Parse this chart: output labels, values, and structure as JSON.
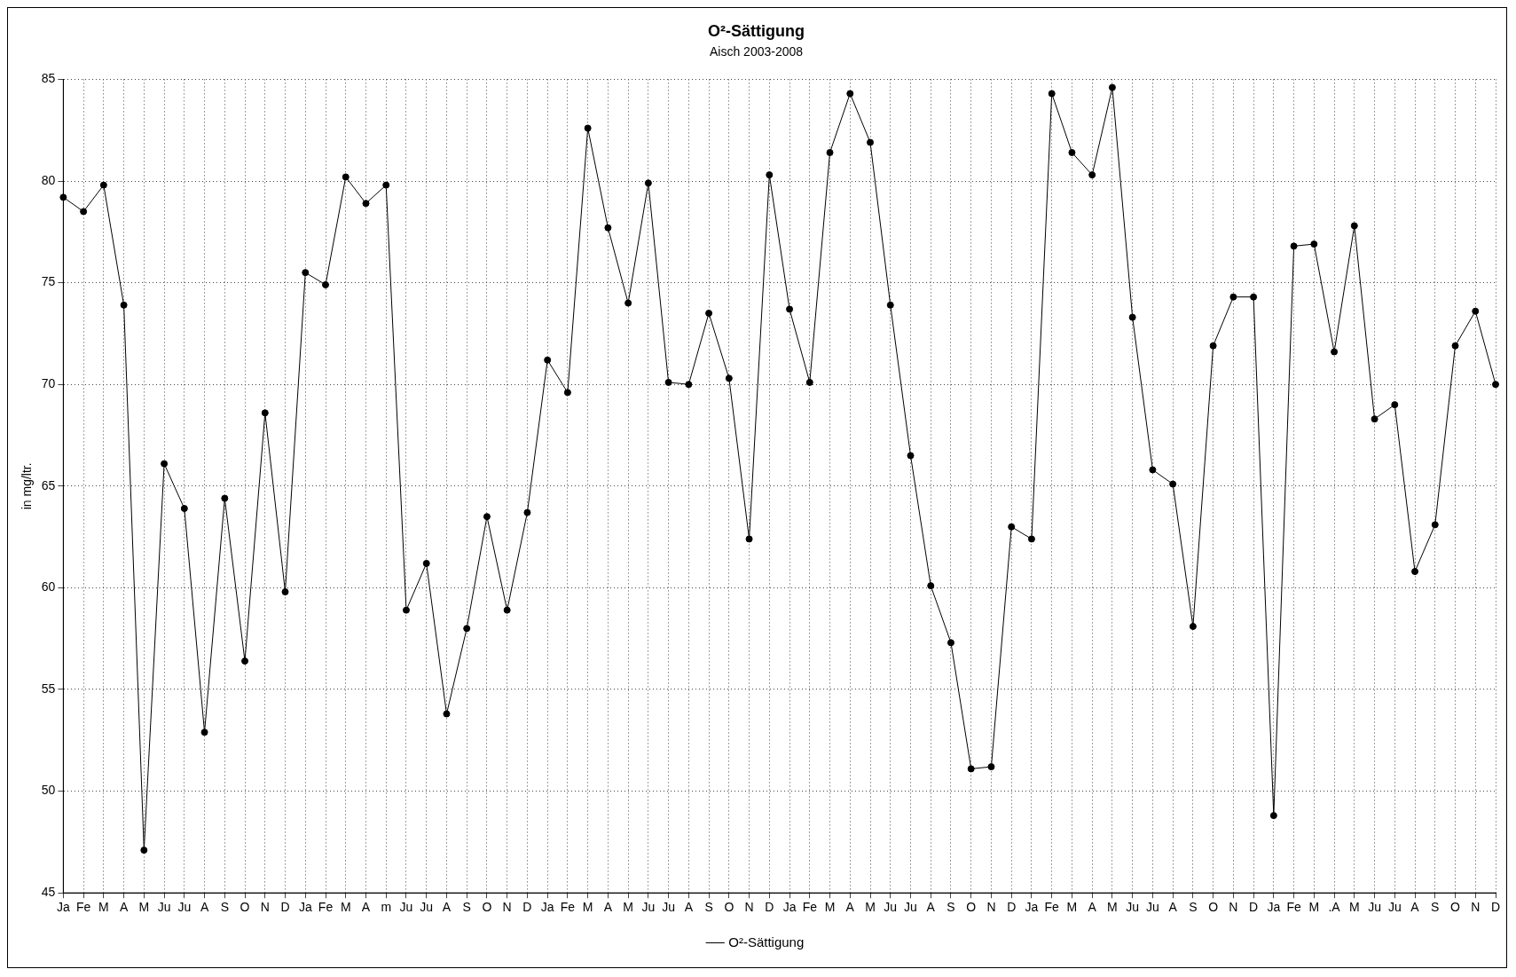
{
  "chart_data": {
    "type": "line",
    "title": "O²-Sättigung",
    "subtitle": "Aisch 2003-2008",
    "ylabel": "in mg/ltr.",
    "categories": [
      "Ja",
      "Fe",
      "M",
      "A",
      "M",
      "Ju",
      "Ju",
      "A",
      "S",
      "O",
      "N",
      "D",
      "Ja",
      "Fe",
      "M",
      "A",
      "m",
      "Ju",
      "Ju",
      "A",
      "S",
      "O",
      "N",
      "D",
      "Ja",
      "Fe",
      "M",
      "A",
      "M",
      "Ju",
      "Ju",
      "A",
      "S",
      "O",
      "N",
      "D",
      "Ja",
      "Fe",
      "M",
      "A",
      "M",
      "Ju",
      "Ju",
      "A",
      "S",
      "O",
      "N",
      "D",
      "Ja",
      "Fe",
      "M",
      "A",
      "M",
      "Ju",
      "Ju",
      "A",
      "S",
      "O",
      "N",
      "D",
      "Ja",
      "Fe",
      "M",
      ".A",
      "M",
      "Ju",
      "Ju",
      "A",
      "S",
      "O",
      "N",
      "D"
    ],
    "series": [
      {
        "name": "O²-Sättigung",
        "color": "#000000",
        "values": [
          79.2,
          78.5,
          79.8,
          73.9,
          47.1,
          66.1,
          63.9,
          52.9,
          64.4,
          56.4,
          68.6,
          59.8,
          75.5,
          74.9,
          80.2,
          78.9,
          79.8,
          58.9,
          61.2,
          53.8,
          58.0,
          63.5,
          58.9,
          63.7,
          71.2,
          69.6,
          82.6,
          77.7,
          74.0,
          79.9,
          70.1,
          70.0,
          73.5,
          70.3,
          62.4,
          80.3,
          73.7,
          70.1,
          81.4,
          84.3,
          81.9,
          73.9,
          66.5,
          60.1,
          57.3,
          51.1,
          51.2,
          63.0,
          62.4,
          84.3,
          81.4,
          80.3,
          84.6,
          73.3,
          65.8,
          65.1,
          58.1,
          71.9,
          74.3,
          74.3,
          48.8,
          76.8,
          76.9,
          71.6,
          77.8,
          68.3,
          69.0,
          60.8,
          63.1,
          71.9,
          73.6,
          70.0
        ]
      }
    ],
    "ylim": [
      45,
      85
    ],
    "yticks": [
      45,
      50,
      55,
      60,
      65,
      70,
      75,
      80,
      85
    ],
    "grid": true,
    "legend": "bottom",
    "marker": "circle",
    "line_style": "solid"
  }
}
